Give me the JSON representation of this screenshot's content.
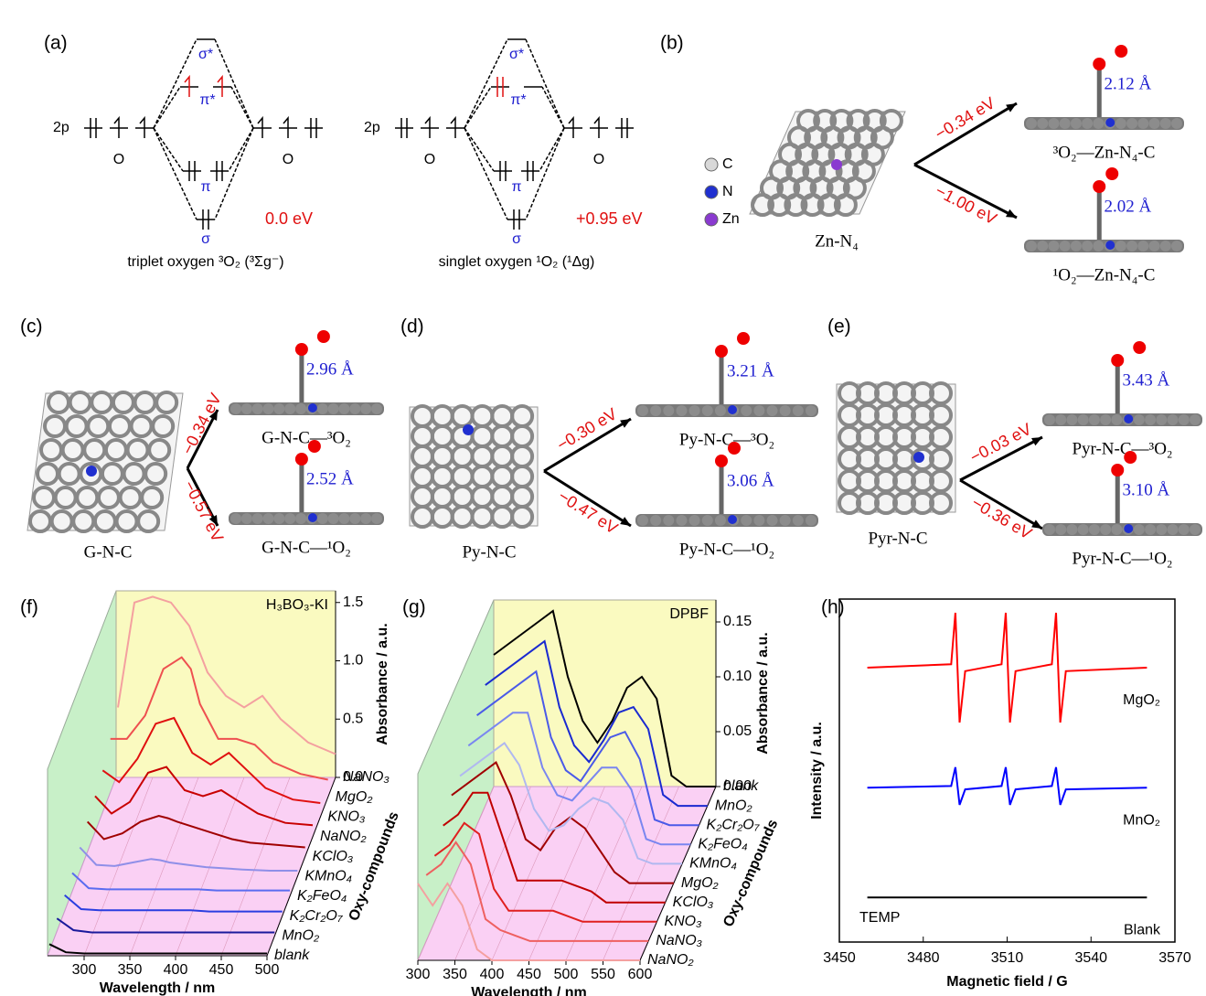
{
  "panel_a": {
    "label": "(a)",
    "triplet": {
      "orbital": "2p",
      "atom_left": "O",
      "atom_right": "O",
      "sigma_star": "σ*",
      "pi_star": "π*",
      "pi": "π",
      "sigma": "σ",
      "energy": "0.0 eV",
      "name": "triplet oxygen ³O₂ (³Σg⁻)"
    },
    "singlet": {
      "orbital": "2p",
      "atom_left": "O",
      "atom_right": "O",
      "sigma_star": "σ*",
      "pi_star": "π*",
      "pi": "π",
      "sigma": "σ",
      "energy": "+0.95 eV",
      "name": "singlet oxygen ¹O₂ (¹Δg)"
    }
  },
  "panel_b": {
    "label": "(b)",
    "legend": [
      "C",
      "N",
      "Zn"
    ],
    "substrate": "Zn-N₄",
    "upper": {
      "energy": "−0.34 eV",
      "distance": "2.12 Å",
      "name": "³O₂—Zn-N₄-C"
    },
    "lower": {
      "energy": "−1.00 eV",
      "distance": "2.02 Å",
      "name": "¹O₂—Zn-N₄-C"
    }
  },
  "panel_c": {
    "label": "(c)",
    "substrate": "G-N-C",
    "upper": {
      "energy": "−0.34 eV",
      "distance": "2.96 Å",
      "name": "G-N-C—³O₂"
    },
    "lower": {
      "energy": "−0.57 eV",
      "distance": "2.52 Å",
      "name": "G-N-C—¹O₂"
    }
  },
  "panel_d": {
    "label": "(d)",
    "substrate": "Py-N-C",
    "upper": {
      "energy": "−0.30 eV",
      "distance": "3.21 Å",
      "name": "Py-N-C—³O₂"
    },
    "lower": {
      "energy": "−0.47 eV",
      "distance": "3.06 Å",
      "name": "Py-N-C—¹O₂"
    }
  },
  "panel_e": {
    "label": "(e)",
    "substrate": "Pyr-N-C",
    "upper": {
      "energy": "−0.03 eV",
      "distance": "3.43 Å",
      "name": "Pyr-N-C—³O₂"
    },
    "lower": {
      "energy": "−0.36 eV",
      "distance": "3.10 Å",
      "name": "Pyr-N-C—¹O₂"
    }
  },
  "chart_data": [
    {
      "type": "waterfall",
      "label": "(f)",
      "annotation": "H₃BO₃-KI",
      "x_label": "Wavelength / nm",
      "y_label": "Absorbance / a.u.",
      "z_label": "Oxy-compounds",
      "xlim": [
        260,
        500
      ],
      "xticks": [
        300,
        350,
        400,
        450,
        500
      ],
      "ylim": [
        0,
        1.6
      ],
      "yticks": [
        {
          "value": 0,
          "label": "0.0"
        },
        {
          "value": 0.5,
          "label": "0.5"
        },
        {
          "value": 1,
          "label": "1.0"
        },
        {
          "value": 1.5,
          "label": "1.5"
        }
      ],
      "x": [
        262,
        280,
        300,
        320,
        340,
        350,
        360,
        380,
        400,
        420,
        440,
        470,
        500
      ],
      "series": [
        {
          "name": "blank",
          "color": "#000000",
          "values": [
            0.1,
            0.03,
            0.02,
            0.02,
            0.02,
            0.02,
            0.02,
            0.02,
            0.02,
            0.02,
            0.02,
            0.02,
            0.02
          ]
        },
        {
          "name": "MnO₂",
          "color": "#1a1a9c",
          "values": [
            0.15,
            0.05,
            0.03,
            0.03,
            0.03,
            0.03,
            0.03,
            0.03,
            0.03,
            0.03,
            0.03,
            0.03,
            0.03
          ]
        },
        {
          "name": "K₂Cr₂O₇",
          "color": "#2a3ee0",
          "values": [
            0.18,
            0.06,
            0.05,
            0.05,
            0.05,
            0.05,
            0.05,
            0.05,
            0.05,
            0.04,
            0.04,
            0.04,
            0.04
          ]
        },
        {
          "name": "K₂FeO₄",
          "color": "#5a6cf0",
          "values": [
            0.2,
            0.07,
            0.06,
            0.06,
            0.06,
            0.06,
            0.06,
            0.06,
            0.06,
            0.05,
            0.05,
            0.05,
            0.05
          ]
        },
        {
          "name": "KMnO₄",
          "color": "#8f8fe8",
          "values": [
            0.25,
            0.1,
            0.09,
            0.12,
            0.15,
            0.14,
            0.12,
            0.1,
            0.08,
            0.07,
            0.06,
            0.05,
            0.05
          ]
        },
        {
          "name": "KClO₃",
          "color": "#a00000",
          "values": [
            0.3,
            0.15,
            0.2,
            0.3,
            0.35,
            0.33,
            0.3,
            0.25,
            0.2,
            0.15,
            0.12,
            0.1,
            0.08
          ]
        },
        {
          "name": "NaNO₂",
          "color": "#c80000",
          "values": [
            0.35,
            0.2,
            0.3,
            0.55,
            0.6,
            0.5,
            0.4,
            0.35,
            0.4,
            0.3,
            0.2,
            0.12,
            0.1
          ]
        },
        {
          "name": "KNO₃",
          "color": "#e01010",
          "values": [
            0.4,
            0.3,
            0.5,
            0.8,
            0.85,
            0.7,
            0.55,
            0.45,
            0.55,
            0.4,
            0.25,
            0.15,
            0.12
          ]
        },
        {
          "name": "MgO₂",
          "color": "#ee5050",
          "values": [
            0.5,
            0.5,
            0.7,
            1.1,
            1.2,
            1.1,
            0.8,
            0.5,
            0.5,
            0.45,
            0.3,
            0.2,
            0.15
          ]
        },
        {
          "name": "NaNO₃",
          "color": "#f4a0a0",
          "values": [
            0.6,
            1.5,
            1.55,
            1.5,
            1.3,
            1.1,
            0.9,
            0.7,
            0.6,
            0.7,
            0.5,
            0.3,
            0.2
          ]
        }
      ]
    },
    {
      "type": "waterfall",
      "label": "(g)",
      "annotation": "DPBF",
      "x_label": "Wavelength / nm",
      "y_label": "Absorbance / a.u.",
      "z_label": "Oxy-compounds",
      "xlim": [
        300,
        600
      ],
      "xticks": [
        300,
        350,
        400,
        450,
        500,
        550,
        600
      ],
      "ylim": [
        0,
        0.17
      ],
      "yticks": [
        {
          "value": 0,
          "label": "0.00"
        },
        {
          "value": 0.05,
          "label": "0.05"
        },
        {
          "value": 0.1,
          "label": "0.10"
        },
        {
          "value": 0.15,
          "label": "0.15"
        }
      ],
      "x": [
        300,
        320,
        340,
        360,
        380,
        400,
        420,
        440,
        460,
        480,
        500,
        520,
        540,
        560,
        580,
        600
      ],
      "series": [
        {
          "name": "NaNO₂",
          "color": "#f4a0a0",
          "values": [
            0.07,
            0.05,
            0.07,
            0.05,
            0.01,
            0,
            0,
            0,
            0,
            0,
            0,
            0,
            0,
            0,
            0,
            0
          ]
        },
        {
          "name": "NaNO₃",
          "color": "#ee6060",
          "values": [
            0.06,
            0.07,
            0.09,
            0.07,
            0.02,
            0.01,
            0.005,
            0,
            0,
            0,
            0,
            0,
            0,
            0,
            0,
            0
          ]
        },
        {
          "name": "KNO₃",
          "color": "#e02020",
          "values": [
            0.06,
            0.07,
            0.09,
            0.08,
            0.03,
            0.01,
            0.01,
            0.01,
            0.01,
            0.005,
            0,
            0,
            0,
            0,
            0,
            0
          ]
        },
        {
          "name": "KClO₃",
          "color": "#c00000",
          "values": [
            0.07,
            0.08,
            0.1,
            0.1,
            0.06,
            0.02,
            0.02,
            0.02,
            0.02,
            0.015,
            0.01,
            0,
            0,
            0,
            0,
            0
          ]
        },
        {
          "name": "MgO₂",
          "color": "#a00000",
          "values": [
            0.08,
            0.09,
            0.1,
            0.11,
            0.08,
            0.04,
            0.03,
            0.05,
            0.06,
            0.05,
            0.03,
            0.01,
            0,
            0,
            0,
            0
          ]
        },
        {
          "name": "KMnO₄",
          "color": "#b0b8f0",
          "values": [
            0.08,
            0.09,
            0.1,
            0.11,
            0.09,
            0.05,
            0.03,
            0.035,
            0.05,
            0.06,
            0.055,
            0.04,
            0.005,
            0,
            0,
            0
          ]
        },
        {
          "name": "K₂FeO₄",
          "color": "#7a86f0",
          "values": [
            0.09,
            0.1,
            0.11,
            0.12,
            0.12,
            0.07,
            0.045,
            0.04,
            0.055,
            0.07,
            0.07,
            0.05,
            0.005,
            0,
            0,
            0
          ]
        },
        {
          "name": "K₂Cr₂O₇",
          "color": "#4a5ae8",
          "values": [
            0.1,
            0.11,
            0.12,
            0.13,
            0.14,
            0.08,
            0.05,
            0.04,
            0.06,
            0.08,
            0.085,
            0.06,
            0.005,
            0,
            0,
            0
          ]
        },
        {
          "name": "MnO₂",
          "color": "#1a2ad0",
          "values": [
            0.11,
            0.12,
            0.13,
            0.14,
            0.15,
            0.09,
            0.055,
            0.04,
            0.06,
            0.085,
            0.09,
            0.07,
            0.01,
            0,
            0,
            0
          ]
        },
        {
          "name": "blank",
          "color": "#000000",
          "values": [
            0.12,
            0.13,
            0.14,
            0.15,
            0.16,
            0.1,
            0.06,
            0.04,
            0.06,
            0.09,
            0.1,
            0.08,
            0.01,
            0,
            0,
            0
          ]
        }
      ]
    },
    {
      "type": "line",
      "label": "(h)",
      "annotation": "TEMP",
      "x_label": "Magnetic field / G",
      "y_label": "Intensity / a.u.",
      "xlim": [
        3450,
        3570
      ],
      "xticks": [
        3450,
        3480,
        3510,
        3540,
        3570
      ],
      "ylim": [
        0,
        10
      ],
      "x": [
        3460,
        3490,
        3491.5,
        3493,
        3495,
        3508,
        3509.5,
        3511,
        3513,
        3526,
        3527.5,
        3529,
        3531,
        3560
      ],
      "series": [
        {
          "name": "MgO₂",
          "color": "#ff0000",
          "values": [
            8,
            8.1,
            9.6,
            6.4,
            7.9,
            8.1,
            9.6,
            6.4,
            7.9,
            8.1,
            9.6,
            6.4,
            7.9,
            8
          ]
        },
        {
          "name": "MnO₂",
          "color": "#0000ff",
          "values": [
            4.5,
            4.55,
            5.1,
            4,
            4.45,
            4.55,
            5.1,
            4,
            4.45,
            4.55,
            5.1,
            4,
            4.45,
            4.5
          ]
        },
        {
          "name": "Blank",
          "color": "#000000",
          "values": [
            1.3,
            1.3,
            1.3,
            1.3,
            1.3,
            1.3,
            1.3,
            1.3,
            1.3,
            1.3,
            1.3,
            1.3,
            1.3,
            1.3
          ]
        }
      ]
    }
  ]
}
